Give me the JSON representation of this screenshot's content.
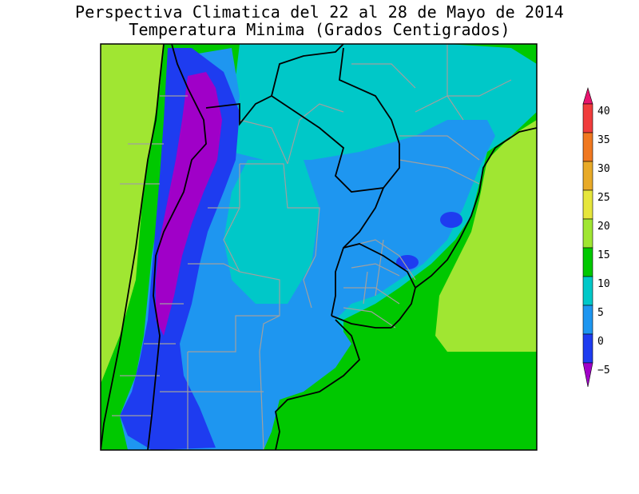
{
  "title": {
    "line1": "Perspectiva Climatica del 22 al 28 de Mayo de 2014",
    "line2": "Temperatura Minima (Grados Centigrados)"
  },
  "legend": {
    "labels": [
      "40",
      "35",
      "30",
      "25",
      "20",
      "15",
      "10",
      "5",
      "0",
      "−5"
    ],
    "colors": [
      "#e8146e",
      "#f03c3c",
      "#f07820",
      "#e8aa28",
      "#e6e63c",
      "#a0e632",
      "#00c800",
      "#00c8c8",
      "#1e96f0",
      "#1e3cf0",
      "#a000c8"
    ]
  },
  "map": {
    "background_color": "#00c800",
    "ocean_east_color": "#a0e632",
    "pacific_color": "#a0e632"
  }
}
